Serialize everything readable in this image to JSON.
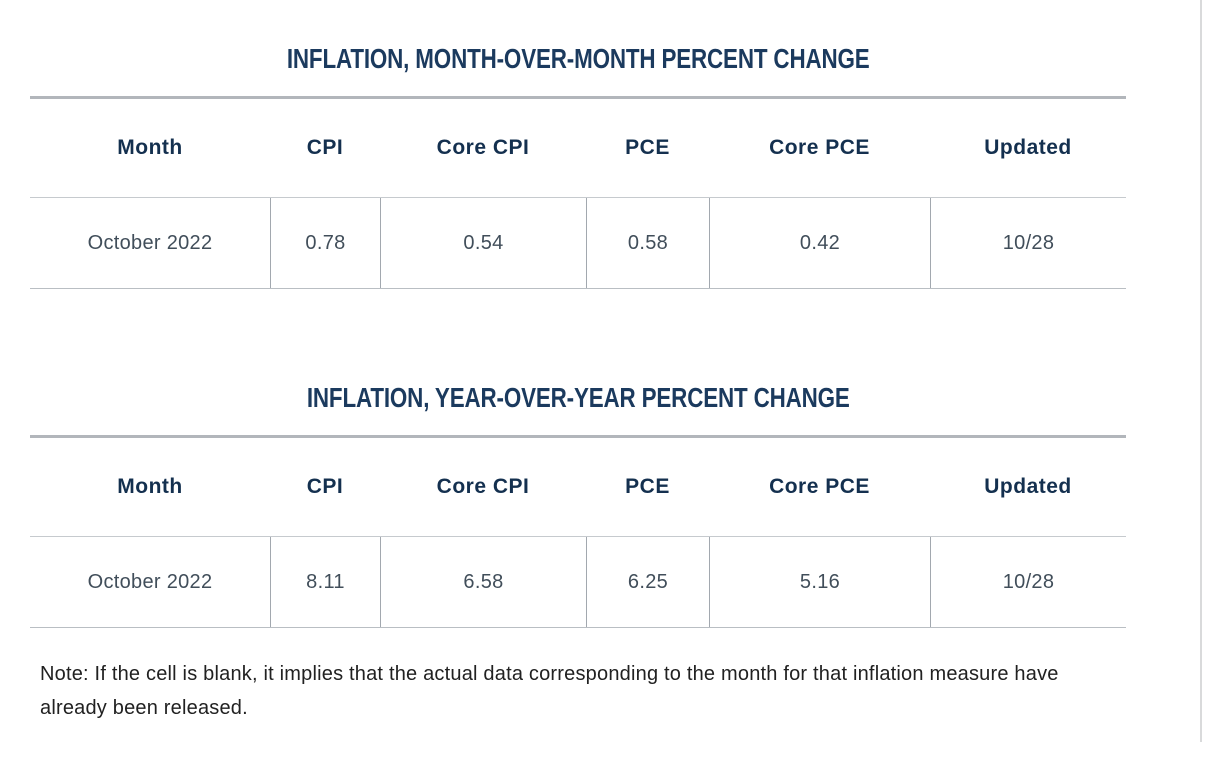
{
  "tables": [
    {
      "id": "month-over-month",
      "title": "INFLATION, MONTH-OVER-MONTH PERCENT CHANGE",
      "columns": [
        "Month",
        "CPI",
        "Core CPI",
        "PCE",
        "Core PCE",
        "Updated"
      ],
      "rows": [
        [
          "October 2022",
          "0.78",
          "0.54",
          "0.58",
          "0.42",
          "10/28"
        ]
      ]
    },
    {
      "id": "year-over-year",
      "title": "INFLATION, YEAR-OVER-YEAR PERCENT CHANGE",
      "columns": [
        "Month",
        "CPI",
        "Core CPI",
        "PCE",
        "Core PCE",
        "Updated"
      ],
      "rows": [
        [
          "October 2022",
          "8.11",
          "6.58",
          "6.25",
          "5.16",
          "10/28"
        ]
      ]
    }
  ],
  "note": {
    "text": "Note: If the cell is blank, it implies that the actual data corresponding to the month for that inflation measure have already been released."
  },
  "colors": {
    "title_navy": "#1b3a5e",
    "header_navy": "#14304f",
    "cell_text": "#414e5a",
    "note_text": "#212121",
    "title_rule": "#b2b6bb",
    "row_border": "#c6cace",
    "cell_divider": "#a2a8af",
    "right_divider": "#d9dadb",
    "background": "#ffffff"
  }
}
